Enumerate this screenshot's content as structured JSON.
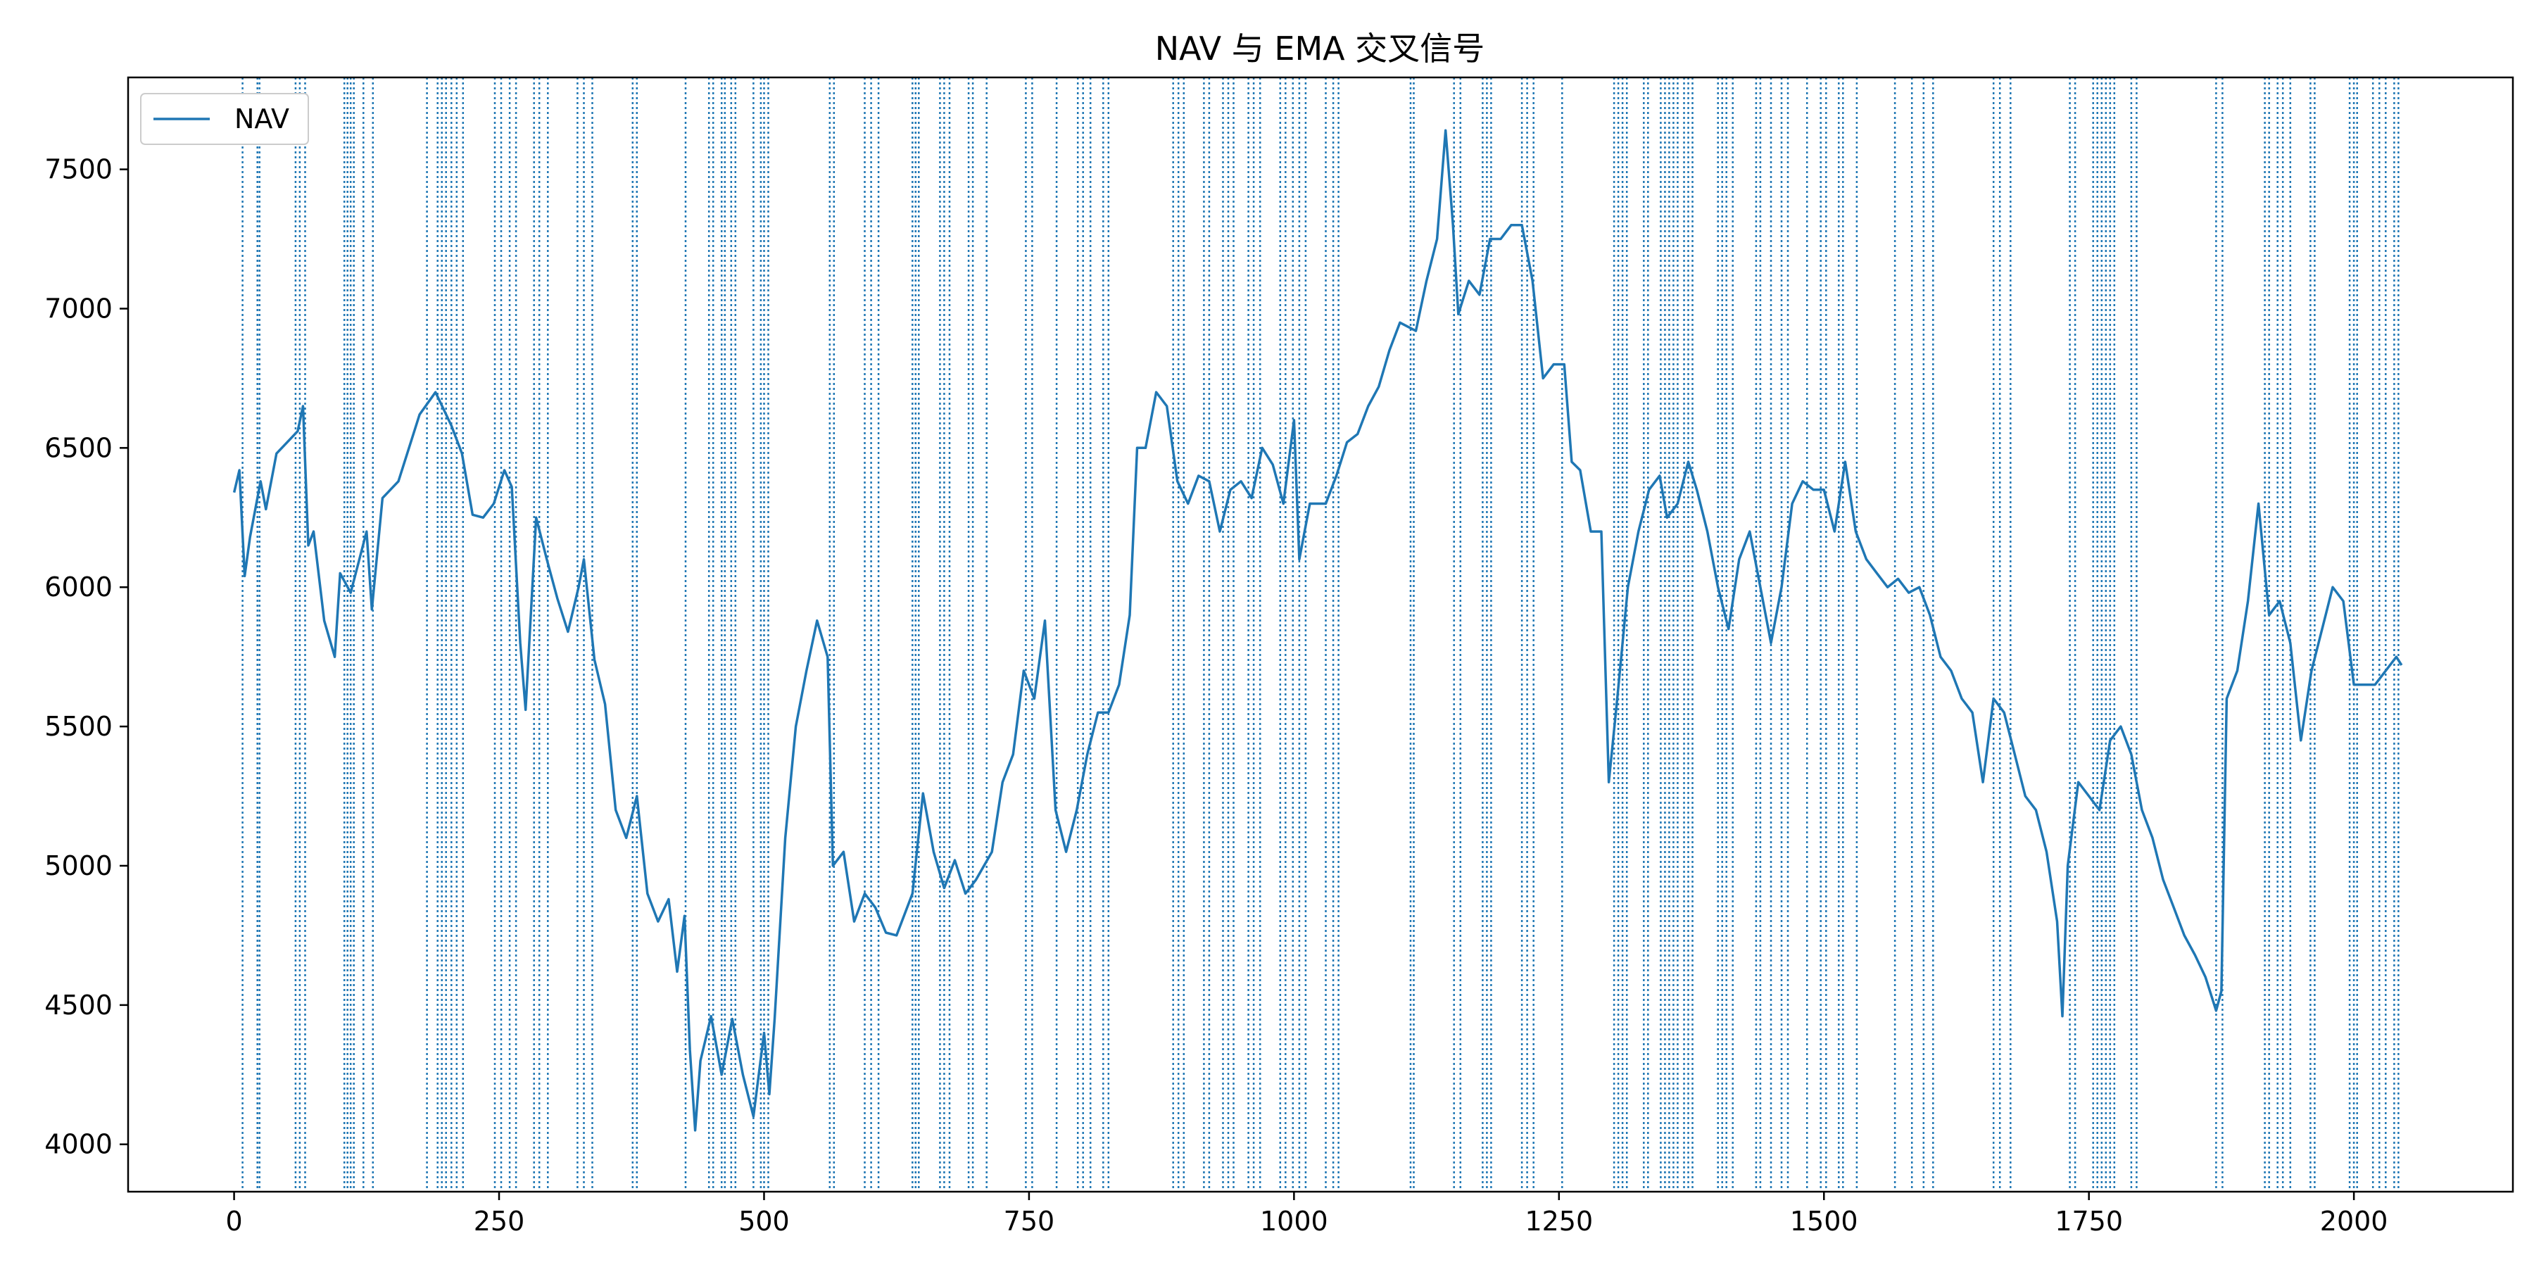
{
  "colors": {
    "nav": "#1f77b4",
    "axis": "#000000",
    "legend_border": "#cccccc"
  },
  "chart_data": {
    "type": "line",
    "title": "NAV 与 EMA 交叉信号",
    "xlabel": "",
    "ylabel": "",
    "xlim": [
      -100,
      2150
    ],
    "ylim": [
      3830,
      7830
    ],
    "xticks": [
      0,
      250,
      500,
      750,
      1000,
      1250,
      1500,
      1750,
      2000
    ],
    "yticks": [
      4000,
      4500,
      5000,
      5500,
      6000,
      6500,
      7000,
      7500
    ],
    "xtick_labels": [
      "0",
      "250",
      "500",
      "750",
      "1000",
      "1250",
      "1500",
      "1750",
      "2000"
    ],
    "ytick_labels": [
      "4000",
      "4500",
      "5000",
      "5500",
      "6000",
      "6500",
      "7000",
      "7500"
    ],
    "legend": {
      "placement": "top-left",
      "entries": [
        "NAV"
      ]
    },
    "grid": false,
    "series": [
      {
        "name": "NAV",
        "style": "solid",
        "points": [
          [
            0,
            6340
          ],
          [
            5,
            6420
          ],
          [
            10,
            6040
          ],
          [
            15,
            6180
          ],
          [
            25,
            6380
          ],
          [
            30,
            6280
          ],
          [
            40,
            6480
          ],
          [
            50,
            6520
          ],
          [
            60,
            6560
          ],
          [
            65,
            6650
          ],
          [
            70,
            6150
          ],
          [
            75,
            6200
          ],
          [
            85,
            5880
          ],
          [
            95,
            5750
          ],
          [
            100,
            6050
          ],
          [
            110,
            5980
          ],
          [
            125,
            6200
          ],
          [
            130,
            5920
          ],
          [
            140,
            6320
          ],
          [
            155,
            6380
          ],
          [
            175,
            6620
          ],
          [
            190,
            6700
          ],
          [
            205,
            6580
          ],
          [
            215,
            6480
          ],
          [
            225,
            6260
          ],
          [
            235,
            6250
          ],
          [
            245,
            6300
          ],
          [
            255,
            6420
          ],
          [
            262,
            6360
          ],
          [
            270,
            5800
          ],
          [
            275,
            5560
          ],
          [
            285,
            6250
          ],
          [
            295,
            6100
          ],
          [
            305,
            5960
          ],
          [
            315,
            5840
          ],
          [
            325,
            6000
          ],
          [
            330,
            6100
          ],
          [
            340,
            5740
          ],
          [
            350,
            5580
          ],
          [
            360,
            5200
          ],
          [
            370,
            5100
          ],
          [
            380,
            5250
          ],
          [
            390,
            4900
          ],
          [
            400,
            4800
          ],
          [
            410,
            4880
          ],
          [
            418,
            4620
          ],
          [
            425,
            4820
          ],
          [
            430,
            4340
          ],
          [
            435,
            4050
          ],
          [
            440,
            4300
          ],
          [
            450,
            4460
          ],
          [
            460,
            4250
          ],
          [
            470,
            4450
          ],
          [
            480,
            4250
          ],
          [
            490,
            4100
          ],
          [
            500,
            4400
          ],
          [
            505,
            4180
          ],
          [
            510,
            4450
          ],
          [
            520,
            5100
          ],
          [
            530,
            5500
          ],
          [
            540,
            5700
          ],
          [
            550,
            5880
          ],
          [
            560,
            5750
          ],
          [
            565,
            5000
          ],
          [
            575,
            5050
          ],
          [
            585,
            4800
          ],
          [
            595,
            4900
          ],
          [
            605,
            4850
          ],
          [
            615,
            4760
          ],
          [
            625,
            4750
          ],
          [
            640,
            4900
          ],
          [
            650,
            5260
          ],
          [
            660,
            5050
          ],
          [
            670,
            4920
          ],
          [
            680,
            5020
          ],
          [
            690,
            4900
          ],
          [
            700,
            4950
          ],
          [
            715,
            5050
          ],
          [
            725,
            5300
          ],
          [
            735,
            5400
          ],
          [
            745,
            5700
          ],
          [
            755,
            5600
          ],
          [
            765,
            5880
          ],
          [
            775,
            5200
          ],
          [
            785,
            5050
          ],
          [
            795,
            5200
          ],
          [
            805,
            5400
          ],
          [
            815,
            5550
          ],
          [
            825,
            5550
          ],
          [
            835,
            5650
          ],
          [
            845,
            5900
          ],
          [
            852,
            6500
          ],
          [
            860,
            6500
          ],
          [
            870,
            6700
          ],
          [
            880,
            6650
          ],
          [
            890,
            6380
          ],
          [
            900,
            6300
          ],
          [
            910,
            6400
          ],
          [
            920,
            6380
          ],
          [
            930,
            6200
          ],
          [
            940,
            6350
          ],
          [
            950,
            6380
          ],
          [
            960,
            6320
          ],
          [
            970,
            6500
          ],
          [
            980,
            6440
          ],
          [
            990,
            6300
          ],
          [
            1000,
            6600
          ],
          [
            1005,
            6100
          ],
          [
            1015,
            6300
          ],
          [
            1030,
            6300
          ],
          [
            1040,
            6400
          ],
          [
            1050,
            6520
          ],
          [
            1060,
            6550
          ],
          [
            1070,
            6650
          ],
          [
            1080,
            6720
          ],
          [
            1090,
            6850
          ],
          [
            1100,
            6950
          ],
          [
            1115,
            6920
          ],
          [
            1125,
            7100
          ],
          [
            1135,
            7250
          ],
          [
            1143,
            7640
          ],
          [
            1150,
            7300
          ],
          [
            1155,
            6980
          ],
          [
            1165,
            7100
          ],
          [
            1175,
            7050
          ],
          [
            1185,
            7250
          ],
          [
            1195,
            7250
          ],
          [
            1205,
            7300
          ],
          [
            1215,
            7300
          ],
          [
            1225,
            7100
          ],
          [
            1235,
            6750
          ],
          [
            1245,
            6800
          ],
          [
            1255,
            6800
          ],
          [
            1262,
            6450
          ],
          [
            1270,
            6420
          ],
          [
            1280,
            6200
          ],
          [
            1290,
            6200
          ],
          [
            1297,
            5300
          ],
          [
            1305,
            5600
          ],
          [
            1315,
            6000
          ],
          [
            1325,
            6200
          ],
          [
            1335,
            6350
          ],
          [
            1345,
            6400
          ],
          [
            1352,
            6250
          ],
          [
            1362,
            6300
          ],
          [
            1372,
            6450
          ],
          [
            1380,
            6350
          ],
          [
            1390,
            6200
          ],
          [
            1400,
            6000
          ],
          [
            1410,
            5850
          ],
          [
            1420,
            6100
          ],
          [
            1430,
            6200
          ],
          [
            1440,
            6000
          ],
          [
            1450,
            5800
          ],
          [
            1460,
            6000
          ],
          [
            1470,
            6300
          ],
          [
            1480,
            6380
          ],
          [
            1490,
            6350
          ],
          [
            1500,
            6350
          ],
          [
            1510,
            6200
          ],
          [
            1520,
            6450
          ],
          [
            1530,
            6200
          ],
          [
            1540,
            6100
          ],
          [
            1550,
            6050
          ],
          [
            1560,
            6000
          ],
          [
            1570,
            6030
          ],
          [
            1580,
            5980
          ],
          [
            1590,
            6000
          ],
          [
            1600,
            5900
          ],
          [
            1610,
            5750
          ],
          [
            1620,
            5700
          ],
          [
            1630,
            5600
          ],
          [
            1640,
            5550
          ],
          [
            1650,
            5300
          ],
          [
            1660,
            5600
          ],
          [
            1670,
            5550
          ],
          [
            1680,
            5400
          ],
          [
            1690,
            5250
          ],
          [
            1700,
            5200
          ],
          [
            1710,
            5050
          ],
          [
            1720,
            4800
          ],
          [
            1725,
            4460
          ],
          [
            1730,
            5000
          ],
          [
            1740,
            5300
          ],
          [
            1750,
            5250
          ],
          [
            1760,
            5200
          ],
          [
            1770,
            5450
          ],
          [
            1780,
            5500
          ],
          [
            1790,
            5400
          ],
          [
            1800,
            5200
          ],
          [
            1810,
            5100
          ],
          [
            1820,
            4950
          ],
          [
            1830,
            4850
          ],
          [
            1840,
            4750
          ],
          [
            1850,
            4680
          ],
          [
            1860,
            4600
          ],
          [
            1870,
            4480
          ],
          [
            1875,
            4550
          ],
          [
            1880,
            5600
          ],
          [
            1890,
            5700
          ],
          [
            1900,
            5950
          ],
          [
            1910,
            6300
          ],
          [
            1920,
            5900
          ],
          [
            1930,
            5950
          ],
          [
            1940,
            5800
          ],
          [
            1950,
            5450
          ],
          [
            1960,
            5700
          ],
          [
            1970,
            5850
          ],
          [
            1980,
            6000
          ],
          [
            1990,
            5950
          ],
          [
            2000,
            5650
          ],
          [
            2010,
            5650
          ],
          [
            2020,
            5650
          ],
          [
            2030,
            5700
          ],
          [
            2040,
            5750
          ],
          [
            2045,
            5720
          ]
        ]
      }
    ],
    "signals": {
      "style": "dotted vertical lines",
      "x": [
        8,
        22,
        24,
        58,
        62,
        67,
        104,
        107,
        110,
        113,
        122,
        131,
        182,
        192,
        196,
        200,
        205,
        210,
        216,
        246,
        252,
        260,
        266,
        283,
        288,
        296,
        324,
        330,
        338,
        376,
        380,
        426,
        448,
        452,
        460,
        463,
        469,
        473,
        490,
        497,
        500,
        504,
        562,
        566,
        595,
        601,
        608,
        640,
        643,
        646,
        666,
        670,
        675,
        693,
        697,
        710,
        747,
        753,
        776,
        796,
        801,
        808,
        820,
        825,
        886,
        891,
        896,
        915,
        920,
        933,
        938,
        943,
        957,
        962,
        968,
        987,
        992,
        999,
        1005,
        1011,
        1030,
        1037,
        1042,
        1110,
        1113,
        1151,
        1157,
        1178,
        1182,
        1186,
        1215,
        1220,
        1226,
        1253,
        1302,
        1306,
        1310,
        1314,
        1330,
        1334,
        1346,
        1350,
        1354,
        1358,
        1362,
        1368,
        1372,
        1376,
        1400,
        1404,
        1408,
        1414,
        1436,
        1440,
        1450,
        1460,
        1466,
        1484,
        1497,
        1502,
        1514,
        1518,
        1531,
        1567,
        1583,
        1594,
        1603,
        1660,
        1666,
        1676,
        1732,
        1737,
        1754,
        1758,
        1762,
        1766,
        1770,
        1774,
        1790,
        1795,
        1870,
        1876,
        1916,
        1920,
        1928,
        1933,
        1940,
        1959,
        1963,
        1996,
        2000,
        2003,
        2018,
        2024,
        2030,
        2038,
        2042
      ]
    }
  }
}
